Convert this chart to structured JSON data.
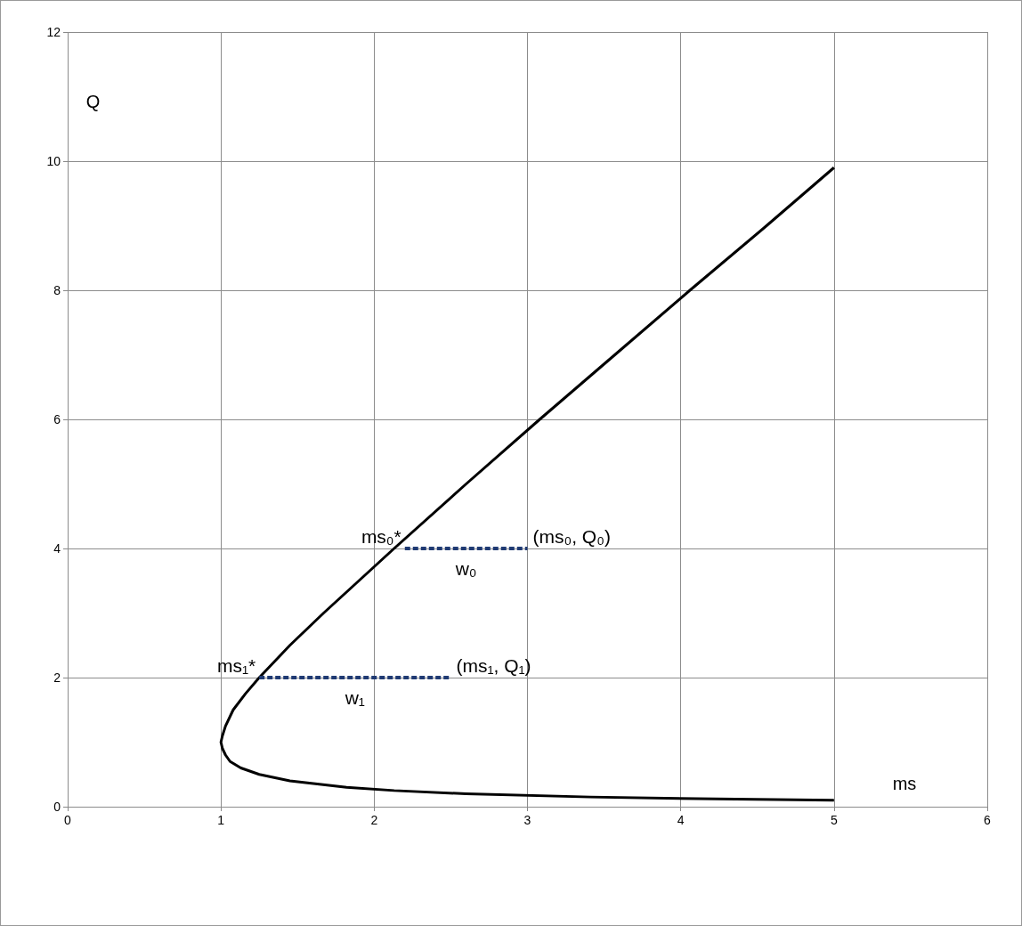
{
  "chart_data": {
    "type": "line",
    "xlabel": "ms",
    "ylabel": "Q",
    "xlim": [
      0,
      6
    ],
    "xticks": [
      0,
      1,
      2,
      3,
      4,
      5,
      6
    ],
    "ylim": [
      0,
      12
    ],
    "yticks": [
      0,
      2,
      4,
      6,
      8,
      10,
      12
    ],
    "grid": true,
    "marker": "none",
    "series": [
      {
        "color": "#000000",
        "line_style": "solid",
        "x": [
          5.0,
          4.23,
          3.41,
          2.6,
          2.13,
          1.82,
          1.45,
          1.25,
          1.13,
          1.06,
          1.03,
          1.01,
          1.0,
          1.01,
          1.03,
          1.08,
          1.16,
          1.25,
          1.45,
          1.67,
          2.13,
          2.6,
          3.08,
          3.57,
          4.06,
          4.56,
          5.0
        ],
        "values": [
          0.1,
          0.12,
          0.15,
          0.2,
          0.25,
          0.3,
          0.4,
          0.5,
          0.6,
          0.7,
          0.8,
          0.9,
          1.0,
          1.1,
          1.25,
          1.5,
          1.75,
          2.0,
          2.5,
          3.0,
          4.0,
          5.0,
          6.0,
          7.0,
          8.0,
          9.0,
          9.9
        ]
      },
      {
        "color": "#1f3a73",
        "line_style": "dashed",
        "x": [
          2.2,
          3.0
        ],
        "values": [
          4,
          4
        ]
      },
      {
        "color": "#1f3a73",
        "line_style": "dashed",
        "x": [
          1.25,
          2.5
        ],
        "values": [
          2,
          2
        ]
      }
    ],
    "annotations": [
      {
        "text": "ms₀*",
        "x": 2.2,
        "y": 4
      },
      {
        "text": "(ms₀, Q₀)",
        "x": 3.0,
        "y": 4
      },
      {
        "text": "w₀",
        "x": 2.6,
        "y": 4
      },
      {
        "text": "ms₁*",
        "x": 1.25,
        "y": 2
      },
      {
        "text": "(ms₁, Q₁)",
        "x": 2.5,
        "y": 2
      },
      {
        "text": "w₁",
        "x": 1.875,
        "y": 2
      }
    ]
  }
}
